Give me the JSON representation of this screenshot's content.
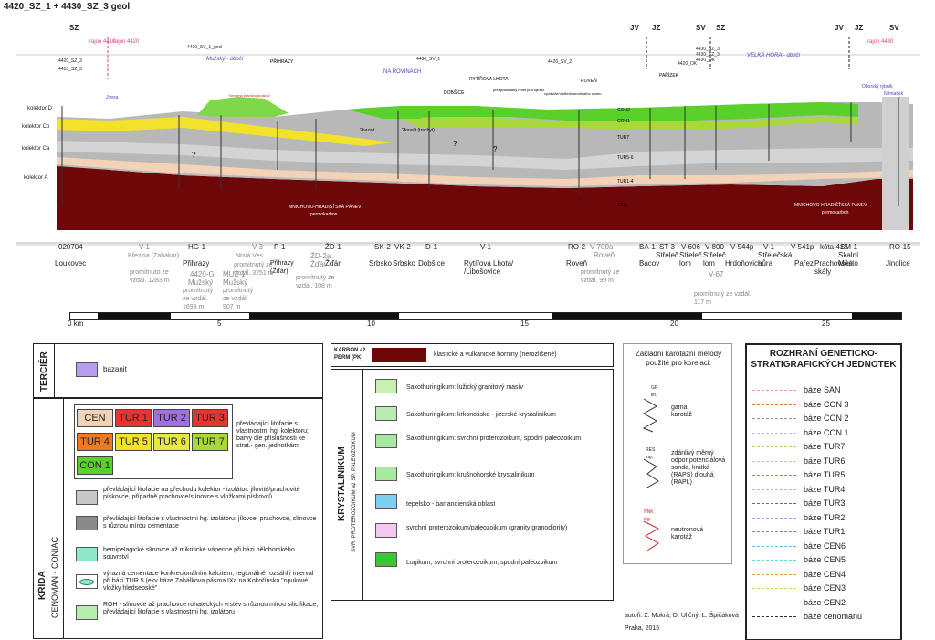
{
  "title": "4420_SZ_1 + 4430_SZ_3  geol",
  "directions": [
    "SZ",
    "JV",
    "JZ",
    "SV",
    "SZ",
    "JV",
    "JZ",
    "SV"
  ],
  "map_sheets": {
    "rajon1": "rajon 4410",
    "rajon2": "rajon 4420",
    "rajon3": "rajon 4430",
    "s1": "4420_SZ_3",
    "s2": "4410_SZ_3",
    "s3": "4430_SV_1_geol",
    "s4": "4430_SV_1",
    "s5": "4420_SV_2",
    "s6": "4430_SZ_3",
    "s7": "4420_OK",
    "s8": "4430_SZ_3",
    "s9": "4430_OK"
  },
  "localities": {
    "muzsky": "Mužský - úbočí",
    "prihrazy": "PŘIHRAZY",
    "na_rovinach": "NA ROVINÁCH",
    "dobsice": "DOBŠICE",
    "rytirova": "RYTÍŘOVA LHOTA",
    "roven": "ROVEŇ",
    "parizek": "PAŘÍZEK",
    "velka_hora": "VELKÁ HORA - úbočí",
    "obora": "Oborský rybník",
    "nemacek": "Němaček",
    "jizera": "Jizera",
    "hranicni": "\"červená hraniční plošina\"",
    "predpokl": "předpokládaný reliéf pod spraší",
    "vyzdvih": "vyzdvižení střednomořského zlomu"
  },
  "kolektors": [
    "kolektor D",
    "kolektor Cb",
    "kolektor Ca",
    "kolektor A"
  ],
  "unit_labels": {
    "con2": "CON2",
    "con1": "CON1",
    "tur7": "TUR7",
    "tur56": "TUR5-6",
    "tur14": "TUR1-4",
    "cen": "CEN",
    "basin1": "MNICHOVO-HRADIŠŤSKÁ PÁNEV",
    "basin1b": "permokarbon",
    "basin2": "MNICHOVO-HRADIŠŤSKÁ PÁNEV",
    "basin2b": "permokarbon",
    "bazalt": "?bazalt",
    "fonolit": "?fonolit (trachyt)",
    "q": "?"
  },
  "wells": [
    {
      "id": "020704",
      "name": "Loukovec"
    },
    {
      "id": "V-1",
      "name": "Březina (Zabakor)",
      "note": "promítnuto ze vzdál. 1283 m"
    },
    {
      "id": "HG-1",
      "name": "Přihrazy"
    },
    {
      "id": "4420-G",
      "name": "Mužský",
      "note": "promítnutý ze vzdál. 1698 m"
    },
    {
      "id": "MUŽ-1",
      "name": "Mužský",
      "note": "promítnutý ze vzdál. 907 m"
    },
    {
      "id": "V-3",
      "name": "Nová Ves",
      "note": "promítnutý ze vzdál. 3251 m"
    },
    {
      "id": "P-1",
      "name": "Přihrazy (Žďár)"
    },
    {
      "id": "ŽD-2a",
      "name": "Žďár",
      "note": "promítnutý ze vzdál. 108 m"
    },
    {
      "id": "ŽD-1",
      "name": "Žďár"
    },
    {
      "id": "SK-2",
      "name": "Srbsko"
    },
    {
      "id": "VK-2",
      "name": "Srbsko"
    },
    {
      "id": "D-1",
      "name": "Dobšice"
    },
    {
      "id": "V-1",
      "name": "Rytířova Lhota/ /Libošovice"
    },
    {
      "id": "RO-2",
      "name": "Roveň"
    },
    {
      "id": "V-700a",
      "name": "Roveň",
      "note": "promítnutý ze vzdál. 99 m"
    },
    {
      "id": "BA-1",
      "name": "Bacov"
    },
    {
      "id": "ST-3",
      "name": "Střeleč"
    },
    {
      "id": "V-606",
      "name": "Střeleč lom"
    },
    {
      "id": "V-800",
      "name": "Střeleč lom"
    },
    {
      "id": "V-544p",
      "name": "Hrdoňovice"
    },
    {
      "id": "V-67",
      "name": "",
      "note": "promítnutý ze vzdál. 117 m"
    },
    {
      "id": "V-1",
      "name": "Střelečská hůra"
    },
    {
      "id": "V-541p",
      "name": "Pařez"
    },
    {
      "id": "kóta 415",
      "name": "Prachovské skály"
    },
    {
      "id": "SM-1",
      "name": "Skalní Město"
    },
    {
      "id": "RO-15",
      "name": "Jinolice"
    }
  ],
  "scale": {
    "labels": [
      "0 km",
      "5",
      "10",
      "15",
      "20",
      "25"
    ]
  },
  "legend_left": {
    "tercier": "TERCIÉR",
    "bazanit": "bazanit",
    "krida": "KŘÍDA",
    "cen_con": "CENOMAN - CONIAC",
    "tur_cells": [
      "CEN",
      "TUR 1",
      "TUR 2",
      "TUR 3",
      "TUR 4",
      "TUR 5",
      "TUR 6",
      "TUR 7",
      "CON 1"
    ],
    "tur_desc": "převládající litofacie s vlastnostmi hg. kolektoru; barvy dle příslušnosti ke strat.- gen. jednotkám",
    "i1": "převládající litofacie na přechodu kolektor - izolátor: jílovité/prachovité pískovce, případně prachovce/slínovce s vložkami pískovců",
    "i2": "převládající litofacie s vlastnostmi hg. izolátoru: jílovce, prachovce, slínovce s různou mírou cementace",
    "i3": "hemipelagické slínovce až mikritické vápence při bázi bělohorského souvrství",
    "i4": "výrazná cementace konkrecionálním kalcitem, regionálně rozsáhlý interval při bázi TUR 5 (ekv báze Zahálkova pásma IXa na Kokořínsku \"opukové vložky hledsebské\"",
    "i5": "ROH - slínovce až prachovce rohateckých vrstev s různou mírou silicifikace, převládající litofacie s vlastnostmi hg. izolátoru"
  },
  "legend_mid": {
    "karbon_head": "KARBON až PERM (PK)",
    "karbon": "klastické a vulkanické horniny (nerozlišené)",
    "krystal": "KRYSTALINIKUM",
    "svr": "SVR. PROTEROZOIKUM až SP. PALEOZOIKUM",
    "k1": "Saxothuringikum: lužický granitový masív",
    "k2": "Saxothuringikum: krkonošsko - jizerské krystalinikum",
    "k3": "Saxothuringikum: svrchní proterozoikum, spodní paleozoikum",
    "k4": "Saxothuringikum: krušnohorské krystalinikum",
    "k5": "tepelsko - barrandienská oblast",
    "k6": "svrchní proterozoikum/paleozoikum (granity granodiority)",
    "k7": "Lugikum, svrchní proterozoikum, spodní paleozoikum"
  },
  "legend_log": {
    "head": "Základní karotážní metody použité pro korelaci:",
    "gr": "GR",
    "lin": "lin.",
    "gama": "gama karotáž",
    "res": "RES",
    "log": "log.",
    "res_desc": "zdánlivý měrný odpor potenciálová sonda, krátká (RAPS) dlouhá (RAPL)",
    "nnk": "NNK",
    "log2": "log.",
    "nnk_desc": "neutronová karotáž"
  },
  "legend_right": {
    "head": "ROZHRANÍ GENETICKO-STRATIGRAFICKÝCH JEDNOTEK",
    "items": [
      "báze SAN",
      "báze CON 3",
      "báze CON 2",
      "báze CON 1",
      "báze TUR7",
      "báze TUR6",
      "báze TUR5",
      "báze TUR4",
      "báze TUR3",
      "báze TUR2",
      "báze TUR1",
      "báze CEN6",
      "báze CEN5",
      "báze CEN4",
      "báze CEN3",
      "báze CEN2",
      "báze cenomanu"
    ],
    "colors": [
      "#e8a0a0",
      "#e07a3a",
      "#9a9a9a",
      "#c0c0c0",
      "#9ee07a",
      "#b0e060",
      "#8080e0",
      "#e0c040",
      "#6060c0",
      "#a0a0e0",
      "#e06060",
      "#60c0e0",
      "#60e0c0",
      "#e0a040",
      "#e0d060",
      "#a0e0a0",
      "#303030"
    ]
  },
  "credits": {
    "authors": "autoři: Z. Mokrá, D. Uličný, L. Špičáková",
    "place": "Praha, 2015"
  },
  "colors": {
    "karbon": "#7a0a0a",
    "cen": "#f3d3b8",
    "tur1": "#e8342f",
    "tur2": "#a070e0",
    "tur3": "#e8342f",
    "tur4": "#f07a20",
    "tur5": "#f2e22a",
    "tur6": "#e8e840",
    "tur7": "#a8d83a",
    "con1": "#5ad02a",
    "bazanit": "#b79cf0",
    "grey_light": "#c8c8c8",
    "grey_dark": "#8a8a8a"
  }
}
